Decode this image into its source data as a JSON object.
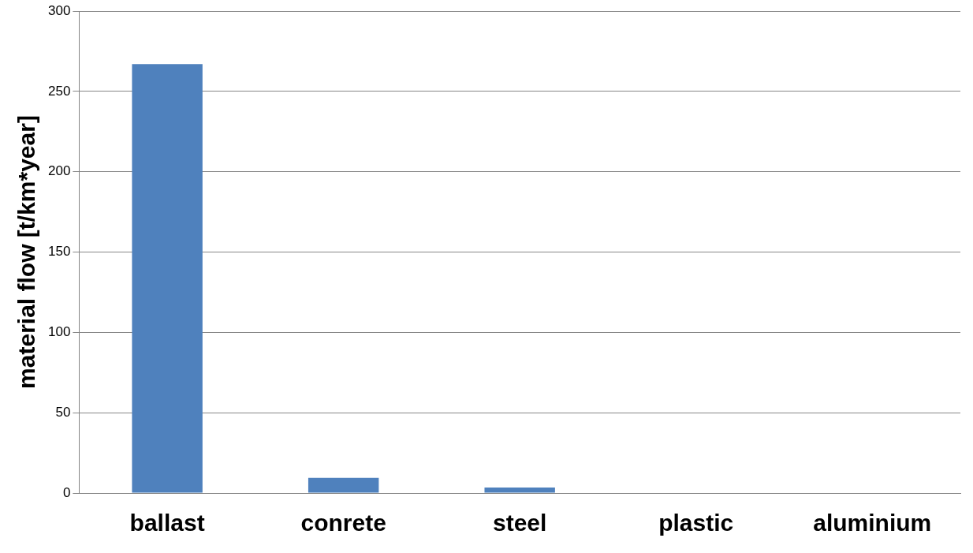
{
  "chart_data": {
    "type": "bar",
    "ylabel": "material flow [t/km*year]",
    "categories": [
      "ballast",
      "conrete",
      "steel",
      "plastic",
      "aluminium"
    ],
    "values": [
      267,
      9.4,
      3.4,
      0,
      0
    ],
    "color": "#4f81bd",
    "ylim": [
      0,
      300
    ],
    "yticks": [
      0,
      50,
      100,
      150,
      200,
      250,
      300
    ],
    "grid": "y",
    "legend": false
  }
}
